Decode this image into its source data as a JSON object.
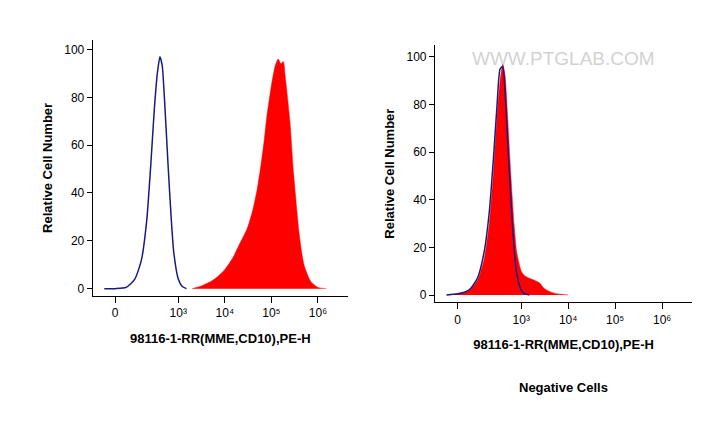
{
  "chart_data": [
    {
      "type": "histogram",
      "x_label": "98116-1-RR(MME,CD10),PE-H",
      "y_label": "Relative Cell Number",
      "xlim": [
        -120,
        4400000
      ],
      "xticks": [
        0,
        {
          "value": 1000,
          "label": "10³"
        },
        {
          "value": 10000,
          "label": "10⁴"
        },
        {
          "value": 100000,
          "label": "10⁵"
        },
        {
          "value": 1000000,
          "label": "10⁶"
        }
      ],
      "ylim": [
        -3,
        104
      ],
      "yticks": [
        0,
        20,
        40,
        60,
        80,
        100
      ],
      "grid": false,
      "series": [
        {
          "type": "area",
          "color": "#ff0000",
          "x": [
            2000,
            3000,
            5000,
            7000,
            10000,
            15000,
            20000,
            30000,
            40000,
            50000,
            60000,
            70000,
            80000,
            100000,
            120000,
            140000,
            160000,
            180000,
            200000,
            250000,
            300000,
            400000,
            500000,
            700000,
            1000000,
            1500000
          ],
          "values": [
            0,
            1,
            3,
            5,
            8,
            13,
            18,
            25,
            33,
            42,
            52,
            62,
            72,
            85,
            93,
            96,
            94,
            95,
            88,
            70,
            48,
            22,
            10,
            3,
            0.5,
            0
          ]
        },
        {
          "type": "line",
          "color": "#1a1a80",
          "x": [
            -50,
            0,
            50,
            100,
            150,
            200,
            250,
            300,
            350,
            400,
            450,
            500,
            600,
            700,
            800,
            1000,
            1200,
            1500
          ],
          "values": [
            0,
            0,
            0.5,
            4,
            12,
            28,
            52,
            75,
            90,
            97,
            93,
            80,
            52,
            30,
            15,
            4,
            1,
            0
          ]
        }
      ]
    },
    {
      "type": "histogram",
      "x_label": "98116-1-RR(MME,CD10),PE-H",
      "y_label": "Relative Cell Number",
      "annotations": [
        "Negative Cells",
        "WWW.PTGLAB.COM"
      ],
      "xlim": [
        -120,
        4400000
      ],
      "xticks": [
        0,
        {
          "value": 1000,
          "label": "10³"
        },
        {
          "value": 10000,
          "label": "10⁴"
        },
        {
          "value": 100000,
          "label": "10⁵"
        },
        {
          "value": 1000000,
          "label": "10⁶"
        }
      ],
      "ylim": [
        -3,
        105
      ],
      "yticks": [
        0,
        20,
        40,
        60,
        80,
        100
      ],
      "grid": false,
      "series": [
        {
          "type": "area",
          "color": "#ff0000",
          "x": [
            -50,
            0,
            50,
            100,
            150,
            200,
            250,
            300,
            350,
            400,
            450,
            500,
            600,
            700,
            800,
            1000,
            1200,
            1500,
            2000,
            2500,
            3000,
            4000,
            5000,
            7000,
            10000
          ],
          "values": [
            0,
            0.5,
            2,
            6,
            15,
            30,
            52,
            75,
            90,
            97,
            92,
            78,
            50,
            30,
            18,
            10,
            8,
            7,
            6,
            5,
            3,
            1.5,
            0.8,
            0.3,
            0
          ]
        },
        {
          "type": "line",
          "color": "#1a1a80",
          "x": [
            -50,
            0,
            50,
            100,
            150,
            200,
            250,
            300,
            350,
            400,
            450,
            500,
            600,
            700,
            800,
            1000,
            1200,
            1500
          ],
          "values": [
            0,
            0.5,
            2,
            7,
            18,
            35,
            58,
            80,
            95,
            96,
            85,
            68,
            40,
            20,
            9,
            2,
            0.5,
            0
          ]
        }
      ]
    }
  ]
}
